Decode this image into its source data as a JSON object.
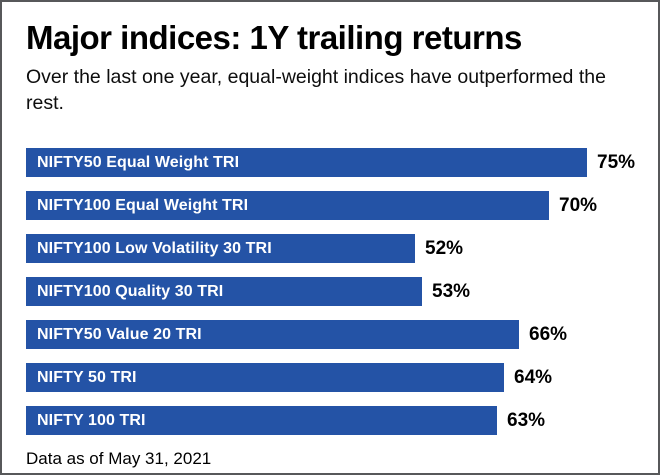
{
  "chart_data": {
    "type": "bar",
    "orientation": "horizontal",
    "title": "Major indices: 1Y trailing returns",
    "subtitle": "Over the last one year, equal-weight indices have outperformed the rest.",
    "footnote": "Data as of May 31, 2021",
    "categories": [
      "NIFTY50 Equal Weight TRI",
      "NIFTY100 Equal Weight TRI",
      "NIFTY100 Low Volatility 30 TRI",
      "NIFTY100 Quality 30 TRI",
      "NIFTY50 Value 20 TRI",
      "NIFTY 50 TRI",
      "NIFTY 100 TRI"
    ],
    "values": [
      75,
      70,
      52,
      53,
      66,
      64,
      63
    ],
    "value_labels": [
      "75%",
      "70%",
      "52%",
      "53%",
      "66%",
      "64%",
      "63%"
    ],
    "value_suffix": "%",
    "xlim": [
      0,
      80
    ],
    "grid": "off",
    "legend": "none",
    "bar_color": "#2453a6",
    "category_label_color": "#ffffff",
    "value_label_color": "#000000",
    "frame_border_color": "#57585a"
  }
}
